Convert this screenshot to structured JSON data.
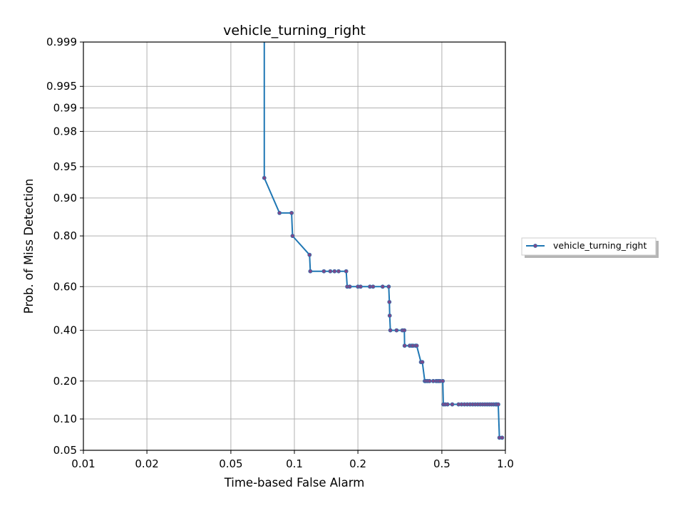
{
  "chart_data": {
    "type": "line",
    "title": "vehicle_turning_right",
    "xlabel": "Time-based False Alarm",
    "ylabel": "Prob. of Miss Detection",
    "x_scale": "log",
    "y_scale": "normal-deviate",
    "xlim": [
      0.01,
      1.0
    ],
    "ylim": [
      0.05,
      0.999
    ],
    "x_ticks": [
      0.01,
      0.02,
      0.05,
      0.1,
      0.2,
      0.5,
      1.0
    ],
    "x_tick_labels": [
      "0.01",
      "0.02",
      "0.05",
      "0.1",
      "0.2",
      "0.5",
      "1.0"
    ],
    "y_ticks": [
      0.05,
      0.1,
      0.2,
      0.4,
      0.6,
      0.8,
      0.9,
      0.95,
      0.98,
      0.99,
      0.995,
      0.999
    ],
    "y_tick_labels": [
      "0.05",
      "0.10",
      "0.20",
      "0.40",
      "0.60",
      "0.80",
      "0.90",
      "0.95",
      "0.98",
      "0.99",
      "0.995",
      "0.999"
    ],
    "grid": true,
    "legend": {
      "position": "right",
      "entries": [
        "vehicle_turning_right"
      ]
    },
    "colors": {
      "line": "#1f77b4",
      "marker": "#7b4a8a"
    },
    "series": [
      {
        "name": "vehicle_turning_right",
        "top_segment": [
          [
            0.072,
            0.999
          ],
          [
            0.072,
            0.935
          ]
        ],
        "x": [
          0.072,
          0.085,
          0.097,
          0.098,
          0.118,
          0.119,
          0.138,
          0.148,
          0.155,
          0.162,
          0.176,
          0.178,
          0.183,
          0.2,
          0.206,
          0.228,
          0.236,
          0.262,
          0.28,
          0.282,
          0.283,
          0.285,
          0.305,
          0.325,
          0.332,
          0.333,
          0.352,
          0.36,
          0.365,
          0.375,
          0.38,
          0.398,
          0.404,
          0.415,
          0.42,
          0.428,
          0.437,
          0.455,
          0.47,
          0.48,
          0.49,
          0.505,
          0.508,
          0.518,
          0.532,
          0.56,
          0.6,
          0.62,
          0.64,
          0.66,
          0.68,
          0.7,
          0.72,
          0.74,
          0.76,
          0.78,
          0.8,
          0.82,
          0.84,
          0.86,
          0.88,
          0.9,
          0.91,
          0.925,
          0.937,
          0.965
        ],
        "y": [
          0.935,
          0.866,
          0.866,
          0.8,
          0.733,
          0.667,
          0.667,
          0.667,
          0.667,
          0.667,
          0.667,
          0.6,
          0.6,
          0.6,
          0.6,
          0.6,
          0.6,
          0.6,
          0.6,
          0.53,
          0.467,
          0.4,
          0.4,
          0.4,
          0.4,
          0.333,
          0.333,
          0.333,
          0.333,
          0.333,
          0.333,
          0.267,
          0.267,
          0.2,
          0.2,
          0.2,
          0.2,
          0.2,
          0.2,
          0.2,
          0.2,
          0.2,
          0.133,
          0.133,
          0.133,
          0.133,
          0.133,
          0.133,
          0.133,
          0.133,
          0.133,
          0.133,
          0.133,
          0.133,
          0.133,
          0.133,
          0.133,
          0.133,
          0.133,
          0.133,
          0.133,
          0.133,
          0.133,
          0.133,
          0.067,
          0.067
        ]
      }
    ]
  }
}
